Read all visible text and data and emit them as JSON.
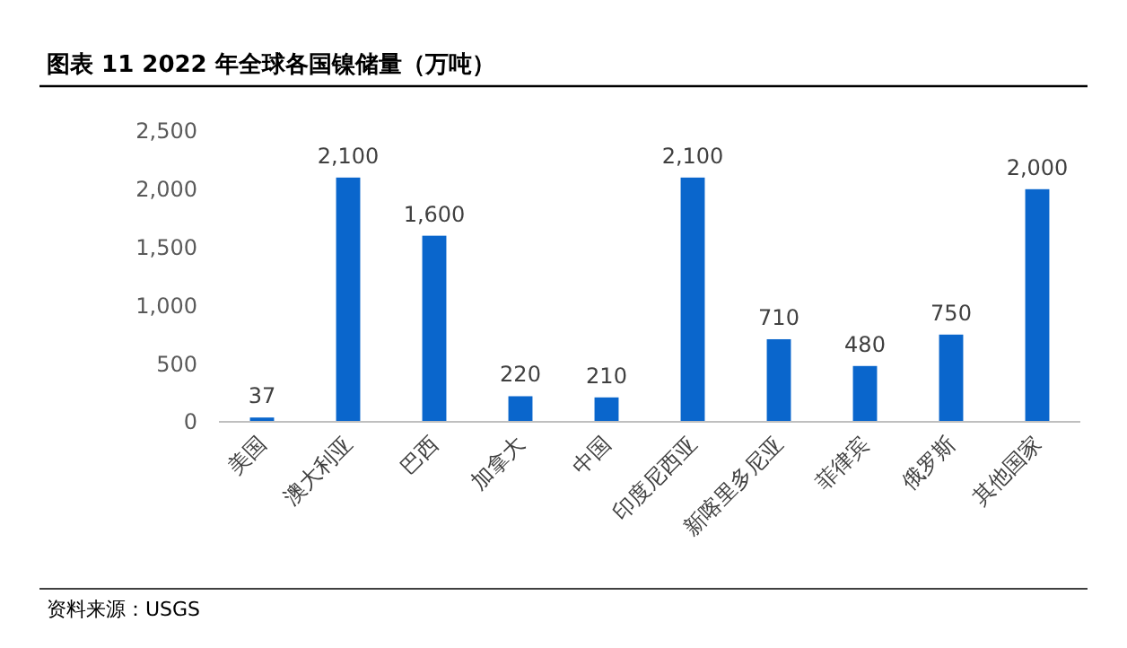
{
  "chart_data": {
    "type": "bar",
    "title": "图表 11  2022 年全球各国镍储量（万吨）",
    "categories": [
      "美国",
      "澳大利亚",
      "巴西",
      "加拿大",
      "中国",
      "印度尼西亚",
      "新喀里多尼亚",
      "菲律宾",
      "俄罗斯",
      "其他国家"
    ],
    "values": [
      37,
      2100,
      1600,
      220,
      210,
      2100,
      710,
      480,
      750,
      2000
    ],
    "color": "#0a66cc",
    "ylim": [
      0,
      2500
    ],
    "yticks": [
      {
        "value": 0,
        "label": "0"
      },
      {
        "value": 500,
        "label": "500"
      },
      {
        "value": 1000,
        "label": "1,000"
      },
      {
        "value": 1500,
        "label": "1,500"
      },
      {
        "value": 2000,
        "label": "2,000"
      },
      {
        "value": 2500,
        "label": "2,500"
      }
    ],
    "grid": false,
    "value_labels": [
      "37",
      "2,100",
      "1,600",
      "220",
      "210",
      "2,100",
      "710",
      "480",
      "750",
      "2,000"
    ],
    "annotations": [
      "资料来源：USGS"
    ]
  }
}
